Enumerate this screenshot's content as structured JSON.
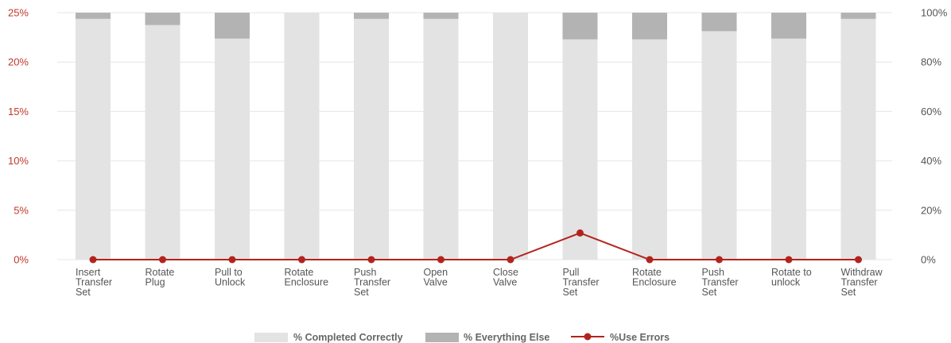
{
  "chart_data": {
    "type": "bar",
    "title": "",
    "xlabel": "",
    "ylabel": "",
    "stacked": true,
    "grid": true,
    "legend_position": "bottom",
    "categories": [
      [
        "Insert",
        "Transfer",
        "Set"
      ],
      [
        "Rotate",
        "Plug"
      ],
      [
        "Pull to",
        "Unlock"
      ],
      [
        "Rotate",
        "Enclosure"
      ],
      [
        "Push",
        "Transfer",
        "Set"
      ],
      [
        "Open",
        "Valve"
      ],
      [
        "Close",
        "Valve"
      ],
      [
        "Pull",
        "Transfer",
        "Set"
      ],
      [
        "Rotate",
        "Enclosure"
      ],
      [
        "Push",
        "Transfer",
        "Set"
      ],
      [
        "Rotate to",
        "unlock"
      ],
      [
        "Withdraw",
        "Transfer",
        "Set"
      ]
    ],
    "y_left": {
      "ylim": [
        0,
        25
      ],
      "ticks": [
        "0%",
        "5%",
        "10%",
        "15%",
        "20%",
        "25%"
      ]
    },
    "y_right": {
      "ylim": [
        0,
        100
      ],
      "ticks": [
        "0%",
        "20%",
        "40%",
        "60%",
        "80%",
        "100%"
      ]
    },
    "series": [
      {
        "name": "% Completed Correctly",
        "axis": "right",
        "kind": "bar",
        "color": "#e3e3e3",
        "values": [
          97.5,
          95,
          89.5,
          100,
          97.5,
          97.5,
          100,
          89.2,
          89.2,
          92.5,
          89.5,
          97.5
        ]
      },
      {
        "name": "% Everything Else",
        "axis": "right",
        "kind": "bar",
        "color": "#b3b3b3",
        "values": [
          2.5,
          5,
          10.5,
          0,
          2.5,
          2.5,
          0,
          10.8,
          10.8,
          7.5,
          10.5,
          2.5
        ]
      },
      {
        "name": "%Use Errors",
        "axis": "left",
        "kind": "line",
        "color": "#b3231d",
        "values": [
          0,
          0,
          0,
          0,
          0,
          0,
          0,
          2.7,
          0,
          0,
          0,
          0
        ]
      }
    ]
  }
}
